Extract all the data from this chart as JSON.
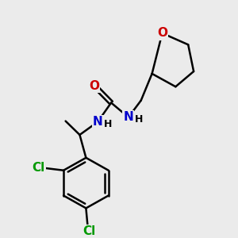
{
  "bg_color": "#ebebeb",
  "bond_color": "#000000",
  "bond_width": 1.8,
  "atom_colors": {
    "O": "#cc0000",
    "N": "#0000cc",
    "Cl": "#009900",
    "C": "#000000",
    "H": "#000000"
  },
  "fs": 11,
  "fsh": 9
}
